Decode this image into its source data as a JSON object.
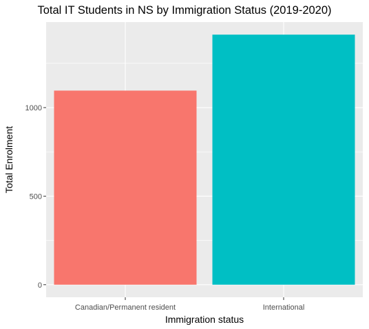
{
  "chart_data": {
    "type": "bar",
    "title": "Total IT Students in NS by Immigration Status (2019-2020)",
    "xlabel": "Immigration status",
    "ylabel": "Total Enrolment",
    "categories": [
      "Canadian/Permanent resident",
      "International"
    ],
    "values": [
      1096,
      1412
    ],
    "colors": [
      "#F8766D",
      "#00BFC4"
    ],
    "yticks": [
      0,
      500,
      1000
    ],
    "ylim": [
      -71,
      1483
    ],
    "panel_background": "#EBEBEB",
    "grid": true,
    "legend": "none"
  }
}
